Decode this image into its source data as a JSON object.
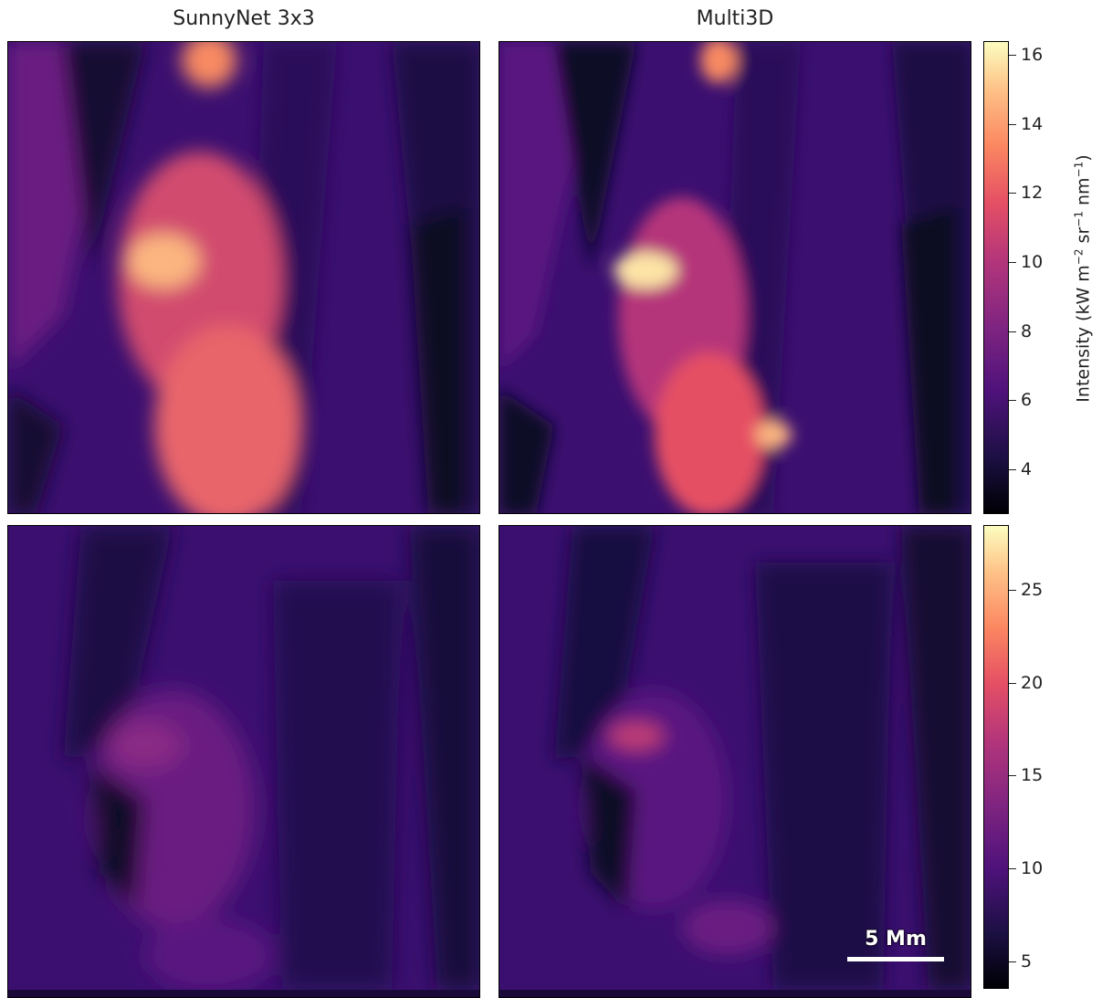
{
  "chart_data": {
    "type": "heatmap",
    "columns": [
      "SunnyNet 3x3",
      "Multi3D"
    ],
    "colormap": "magma",
    "colorbar_label": "Intensity (kW m−2 sr−1 nm−1)",
    "colorbar_label_parts": [
      "Intensity (kW m",
      "−2",
      " sr",
      "−1",
      " nm",
      "−1",
      ")"
    ],
    "rows": [
      {
        "colorbar": {
          "min": 2.7,
          "max": 16.4,
          "ticks": [
            "4",
            "6",
            "8",
            "10",
            "12",
            "14",
            "16"
          ]
        }
      },
      {
        "colorbar": {
          "min": 3.5,
          "max": 28.5,
          "ticks": [
            "5",
            "10",
            "15",
            "20",
            "25"
          ]
        }
      }
    ],
    "scale_bar": "5 Mm"
  }
}
